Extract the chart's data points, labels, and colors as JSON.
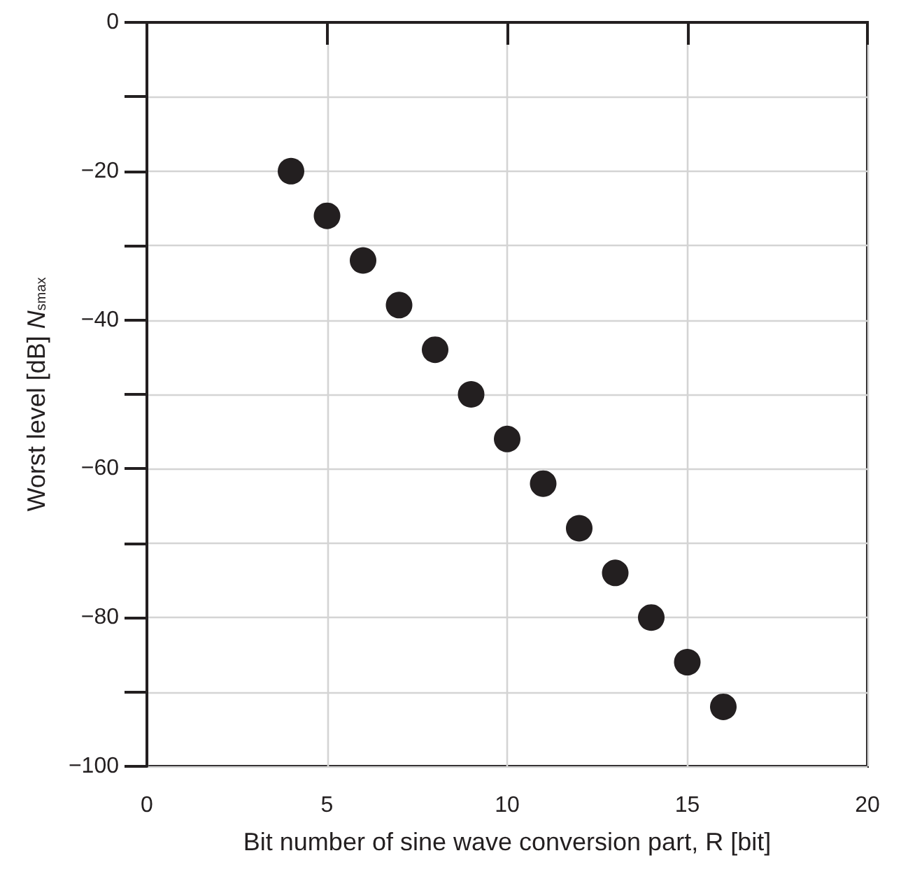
{
  "chart_data": {
    "type": "scatter",
    "xlabel": "Bit number of sine wave conversion part, R [bit]",
    "ylabel": "Worst level [dB] N$_{smax}$",
    "x": [
      4,
      5,
      6,
      7,
      8,
      9,
      10,
      11,
      12,
      13,
      14,
      15,
      16
    ],
    "series": [
      {
        "color": "#231f20",
        "values": [
          -20,
          -26,
          -32,
          -38,
          -44,
          -50,
          -56,
          -62,
          -68,
          -74,
          -80,
          -86,
          -92
        ]
      }
    ],
    "xlim": [
      0,
      20
    ],
    "xticks": [
      0,
      5,
      10,
      15,
      20
    ],
    "ylim": [
      -100,
      0
    ],
    "yticks": [
      {
        "value": -100,
        "label": "−100"
      },
      {
        "value": -90,
        "label": null
      },
      {
        "value": -80,
        "label": "−80"
      },
      {
        "value": -70,
        "label": null
      },
      {
        "value": -60,
        "label": "−60"
      },
      {
        "value": -50,
        "label": null
      },
      {
        "value": -40,
        "label": "−40"
      },
      {
        "value": -30,
        "label": null
      },
      {
        "value": -20,
        "label": "−20"
      },
      {
        "value": -10,
        "label": null
      },
      0
    ],
    "grid": true,
    "marker": "circle"
  }
}
